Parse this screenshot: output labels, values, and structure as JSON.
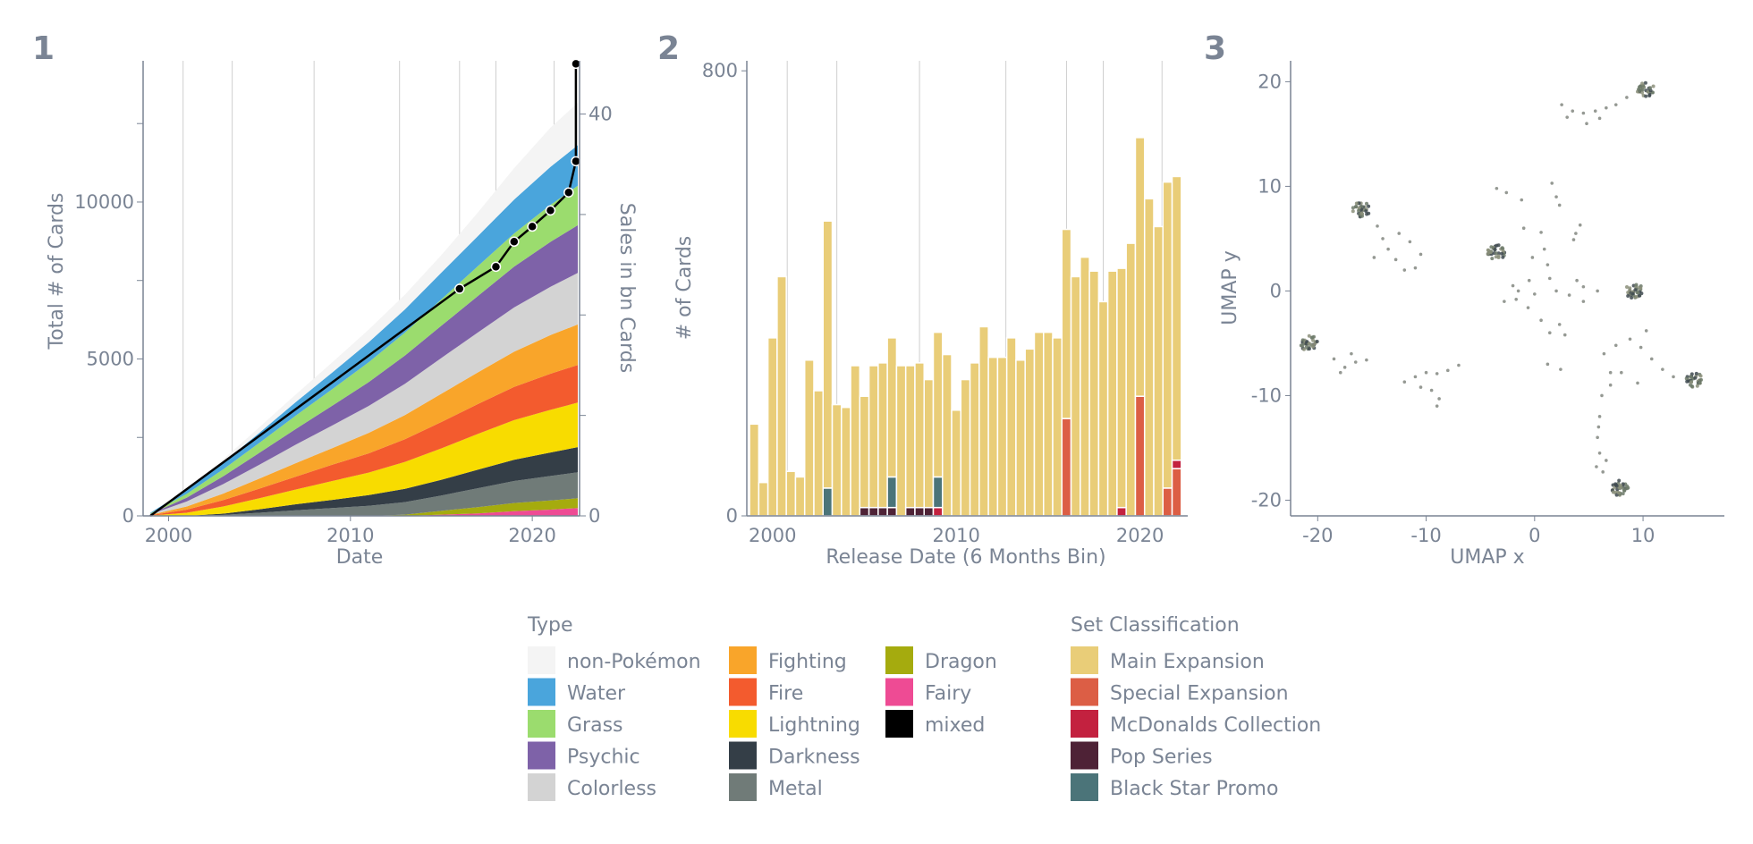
{
  "panels": [
    {
      "label": "1"
    },
    {
      "label": "2"
    },
    {
      "label": "3"
    }
  ],
  "colors": {
    "non-Pokémon": "#f4f4f4",
    "Water": "#4aa5dc",
    "Grass": "#9bdc6e",
    "Psychic": "#7e62a8",
    "Colorless": "#d3d3d3",
    "Fighting": "#f9a52a",
    "Fire": "#f35b2e",
    "Lightning": "#f8dc00",
    "Darkness": "#343e47",
    "Metal": "#707b78",
    "Dragon": "#a5ab0e",
    "Fairy": "#ee4b94",
    "mixed": "#000000",
    "Main Expansion": "#e9cd78",
    "Special Expansion": "#dc5e45",
    "McDonalds Collection": "#c3213f",
    "Pop Series": "#4e2236",
    "Black Star Promo": "#4b7479"
  },
  "chart_data": [
    {
      "type": "area",
      "panel": "1",
      "xlabel": "Date",
      "ylabel": "Total # of Cards",
      "y2label": "Sales in bn Cards",
      "xlim": [
        1998.6,
        2022.6
      ],
      "ylim": [
        0,
        14500
      ],
      "y2lim": [
        0,
        45.3
      ],
      "xticks": [
        2000,
        2010,
        2020
      ],
      "yticks": [
        0,
        5000,
        10000
      ],
      "y2ticks": [
        0,
        40
      ],
      "stacked": true,
      "series_order": [
        "mixed",
        "Fairy",
        "Dragon",
        "Metal",
        "Darkness",
        "Lightning",
        "Fire",
        "Fighting",
        "Colorless",
        "Psychic",
        "Grass",
        "Water",
        "non-Pokémon"
      ],
      "x": [
        1999.0,
        2001.0,
        2003.0,
        2005.0,
        2007.0,
        2009.0,
        2011.0,
        2013.0,
        2015.0,
        2017.0,
        2019.0,
        2021.0,
        2022.5
      ],
      "series": [
        {
          "name": "mixed",
          "values": [
            0,
            0,
            0,
            0,
            0,
            0,
            0,
            0,
            0,
            0,
            0,
            0,
            10
          ]
        },
        {
          "name": "Fairy",
          "values": [
            0,
            0,
            0,
            0,
            0,
            0,
            0,
            0,
            40,
            80,
            150,
            200,
            240
          ]
        },
        {
          "name": "Dragon",
          "values": [
            0,
            0,
            0,
            0,
            0,
            0,
            0,
            40,
            120,
            200,
            260,
            290,
            310
          ]
        },
        {
          "name": "Metal",
          "values": [
            0,
            0,
            30,
            100,
            180,
            250,
            320,
            400,
            490,
            600,
            700,
            780,
            830
          ]
        },
        {
          "name": "Darkness",
          "values": [
            0,
            0,
            40,
            110,
            190,
            260,
            340,
            420,
            500,
            590,
            680,
            750,
            800
          ]
        },
        {
          "name": "Lightning",
          "values": [
            10,
            100,
            230,
            350,
            470,
            600,
            720,
            860,
            1000,
            1140,
            1260,
            1360,
            1420
          ]
        },
        {
          "name": "Fire",
          "values": [
            10,
            100,
            200,
            310,
            410,
            520,
            610,
            720,
            840,
            950,
            1060,
            1150,
            1200
          ]
        },
        {
          "name": "Fighting",
          "values": [
            10,
            100,
            210,
            320,
            430,
            530,
            650,
            770,
            900,
            1010,
            1120,
            1230,
            1290
          ]
        },
        {
          "name": "Colorless",
          "values": [
            20,
            160,
            300,
            440,
            590,
            720,
            860,
            1000,
            1140,
            1270,
            1410,
            1540,
            1640
          ]
        },
        {
          "name": "Psychic",
          "values": [
            10,
            120,
            250,
            380,
            500,
            630,
            760,
            900,
            1030,
            1160,
            1300,
            1430,
            1520
          ]
        },
        {
          "name": "Grass",
          "values": [
            20,
            120,
            220,
            320,
            430,
            530,
            630,
            730,
            840,
            950,
            1060,
            1180,
            1260
          ]
        },
        {
          "name": "Water",
          "values": [
            20,
            120,
            220,
            320,
            430,
            530,
            640,
            740,
            850,
            960,
            1080,
            1210,
            1290
          ]
        },
        {
          "name": "non-Pokémon",
          "values": [
            0,
            40,
            100,
            180,
            240,
            320,
            400,
            470,
            560,
            750,
            1000,
            1250,
            1350
          ]
        }
      ],
      "sales_line": {
        "x": [
          1999.0,
          2016.0,
          2018.0,
          2019.0,
          2020.0,
          2021.0,
          2022.0,
          2023.0,
          2024.0
        ],
        "values": [
          0,
          22.6,
          24.8,
          27.3,
          28.8,
          30.4,
          32.2,
          35.3,
          45.7
        ]
      }
    },
    {
      "type": "bar",
      "panel": "2",
      "xlabel": "Release Date (6 Months Bin)",
      "ylabel": "# of Cards",
      "xlim": [
        1998.6,
        2022.6
      ],
      "ylim": [
        0,
        818
      ],
      "xticks": [
        2000,
        2010,
        2020
      ],
      "yticks": [
        0,
        800
      ],
      "stacked": true,
      "bin_width": 0.5,
      "series_order": [
        "Special Expansion",
        "McDonalds Collection",
        "Pop Series",
        "Black Star Promo",
        "Main Expansion"
      ],
      "x": [
        1999.0,
        1999.5,
        2000.0,
        2000.5,
        2001.0,
        2001.5,
        2002.0,
        2002.5,
        2003.0,
        2003.5,
        2004.0,
        2004.5,
        2005.0,
        2005.5,
        2006.0,
        2006.5,
        2007.0,
        2007.5,
        2008.0,
        2008.5,
        2009.0,
        2009.5,
        2010.0,
        2010.5,
        2011.0,
        2011.5,
        2012.0,
        2012.5,
        2013.0,
        2013.5,
        2014.0,
        2014.5,
        2015.0,
        2015.5,
        2016.0,
        2016.5,
        2017.0,
        2017.5,
        2018.0,
        2018.5,
        2019.0,
        2019.5,
        2020.0,
        2020.5,
        2021.0,
        2021.5,
        2022.0
      ],
      "series": [
        {
          "name": "Main Expansion",
          "values": [
            165,
            60,
            320,
            430,
            80,
            70,
            280,
            225,
            480,
            200,
            195,
            270,
            200,
            255,
            260,
            250,
            270,
            255,
            260,
            230,
            260,
            290,
            190,
            245,
            275,
            340,
            285,
            285,
            320,
            280,
            300,
            330,
            330,
            320,
            340,
            430,
            465,
            440,
            385,
            440,
            430,
            490,
            465,
            570,
            520,
            550,
            510
          ]
        },
        {
          "name": "Special Expansion",
          "values": [
            0,
            0,
            0,
            0,
            0,
            0,
            0,
            0,
            0,
            0,
            0,
            0,
            0,
            0,
            0,
            0,
            0,
            0,
            0,
            0,
            0,
            0,
            0,
            0,
            0,
            0,
            0,
            0,
            0,
            0,
            0,
            0,
            0,
            0,
            175,
            0,
            0,
            0,
            0,
            0,
            0,
            0,
            215,
            0,
            0,
            50,
            85
          ]
        },
        {
          "name": "McDonalds Collection",
          "values": [
            0,
            0,
            0,
            0,
            0,
            0,
            0,
            0,
            0,
            0,
            0,
            0,
            0,
            0,
            0,
            0,
            0,
            0,
            0,
            0,
            15,
            0,
            0,
            0,
            0,
            0,
            0,
            0,
            0,
            0,
            0,
            0,
            0,
            0,
            0,
            0,
            0,
            0,
            0,
            0,
            15,
            0,
            0,
            0,
            0,
            0,
            15
          ]
        },
        {
          "name": "Pop Series",
          "values": [
            0,
            0,
            0,
            0,
            0,
            0,
            0,
            0,
            0,
            0,
            0,
            0,
            15,
            15,
            15,
            15,
            0,
            15,
            15,
            15,
            0,
            0,
            0,
            0,
            0,
            0,
            0,
            0,
            0,
            0,
            0,
            0,
            0,
            0,
            0,
            0,
            0,
            0,
            0,
            0,
            0,
            0,
            0,
            0,
            0,
            0,
            0
          ]
        },
        {
          "name": "Black Star Promo",
          "values": [
            0,
            0,
            0,
            0,
            0,
            0,
            0,
            0,
            50,
            0,
            0,
            0,
            0,
            0,
            0,
            55,
            0,
            0,
            0,
            0,
            55,
            0,
            0,
            0,
            0,
            0,
            0,
            0,
            0,
            0,
            0,
            0,
            0,
            0,
            0,
            0,
            0,
            0,
            0,
            0,
            0,
            0,
            0,
            0,
            0,
            0,
            0
          ]
        }
      ]
    },
    {
      "type": "scatter",
      "panel": "3",
      "xlabel": "UMAP  x",
      "ylabel": "UMAP  y",
      "xlim": [
        -22.5,
        17.5
      ],
      "ylim": [
        -21.5,
        22
      ],
      "xticks": [
        -20,
        -10,
        0,
        10
      ],
      "yticks": [
        -20,
        -10,
        0,
        10,
        20
      ],
      "dense_clusters": [
        {
          "x": 10.2,
          "y": 19.3
        },
        {
          "x": -16.0,
          "y": 7.8
        },
        {
          "x": -3.5,
          "y": 3.7
        },
        {
          "x": 9.2,
          "y": 0.0
        },
        {
          "x": -20.8,
          "y": -5.0
        },
        {
          "x": 14.8,
          "y": -8.5
        },
        {
          "x": 7.8,
          "y": -18.8
        }
      ],
      "scattered_points": [
        [
          2.5,
          17.8
        ],
        [
          3.5,
          17.2
        ],
        [
          4.5,
          17.0
        ],
        [
          5.6,
          17.2
        ],
        [
          6.6,
          17.5
        ],
        [
          7.5,
          17.8
        ],
        [
          8.5,
          18.5
        ],
        [
          4.8,
          16.0
        ],
        [
          6.0,
          16.5
        ],
        [
          3.0,
          16.6
        ],
        [
          -14.5,
          6.2
        ],
        [
          -14.0,
          5.0
        ],
        [
          -13.5,
          4.0
        ],
        [
          -12.8,
          3.0
        ],
        [
          -12.0,
          2.0
        ],
        [
          -11.0,
          2.2
        ],
        [
          -10.5,
          3.5
        ],
        [
          -11.5,
          4.7
        ],
        [
          -12.5,
          5.5
        ],
        [
          -14.8,
          3.2
        ],
        [
          -3.5,
          9.8
        ],
        [
          -2.6,
          9.4
        ],
        [
          -1.2,
          8.7
        ],
        [
          1.6,
          10.3
        ],
        [
          2.0,
          9.0
        ],
        [
          2.3,
          8.2
        ],
        [
          3.8,
          5.5
        ],
        [
          4.2,
          6.3
        ],
        [
          3.6,
          4.9
        ],
        [
          -1.0,
          6.0
        ],
        [
          0.6,
          5.6
        ],
        [
          0.9,
          4.0
        ],
        [
          1.2,
          2.5
        ],
        [
          1.4,
          1.2
        ],
        [
          -0.2,
          3.2
        ],
        [
          -0.5,
          1.0
        ],
        [
          -1.5,
          0.0
        ],
        [
          -2.8,
          -1.0
        ],
        [
          -2.0,
          0.5
        ],
        [
          0.0,
          -0.3
        ],
        [
          2.0,
          0.0
        ],
        [
          3.2,
          -0.4
        ],
        [
          4.5,
          0.4
        ],
        [
          5.8,
          0.0
        ],
        [
          -0.6,
          -1.6
        ],
        [
          0.6,
          -2.8
        ],
        [
          1.4,
          -4.0
        ],
        [
          2.3,
          -3.2
        ],
        [
          2.8,
          -4.2
        ],
        [
          1.2,
          -7.0
        ],
        [
          -18.5,
          -6.5
        ],
        [
          -17.5,
          -7.3
        ],
        [
          -16.5,
          -6.8
        ],
        [
          -15.5,
          -6.6
        ],
        [
          -17.9,
          -7.8
        ],
        [
          -16.9,
          -6.0
        ],
        [
          -12.0,
          -8.7
        ],
        [
          -11.0,
          -8.2
        ],
        [
          -10.0,
          -7.8
        ],
        [
          -9.0,
          -7.9
        ],
        [
          -8.0,
          -7.6
        ],
        [
          -7.0,
          -7.1
        ],
        [
          -9.5,
          -9.5
        ],
        [
          -9.0,
          -11.0
        ],
        [
          -8.8,
          -10.3
        ],
        [
          -10.5,
          -9.2
        ],
        [
          6.4,
          -6.0
        ],
        [
          7.5,
          -5.2
        ],
        [
          8.8,
          -4.6
        ],
        [
          9.8,
          -5.4
        ],
        [
          10.8,
          -6.5
        ],
        [
          11.8,
          -7.5
        ],
        [
          12.8,
          -8.2
        ],
        [
          7.0,
          -7.8
        ],
        [
          6.2,
          -10.0
        ],
        [
          6.0,
          -12.0
        ],
        [
          5.8,
          -14.0
        ],
        [
          6.0,
          -15.5
        ],
        [
          5.7,
          -16.8
        ],
        [
          6.3,
          -17.3
        ],
        [
          8.0,
          -7.8
        ],
        [
          9.5,
          -8.8
        ],
        [
          10.3,
          -3.8
        ],
        [
          7.0,
          -9.0
        ],
        [
          5.9,
          -13.0
        ],
        [
          6.6,
          -16.2
        ],
        [
          2.4,
          -7.5
        ],
        [
          4.5,
          -1.0
        ],
        [
          3.9,
          1.0
        ],
        [
          -1.7,
          -0.8
        ]
      ]
    }
  ],
  "legend_type": {
    "title": "Type",
    "items": [
      "non-Pokémon",
      "Water",
      "Grass",
      "Psychic",
      "Colorless",
      "Fighting",
      "Fire",
      "Lightning",
      "Darkness",
      "Metal",
      "Dragon",
      "Fairy",
      "mixed"
    ]
  },
  "legend_set": {
    "title": "Set Classification",
    "items": [
      "Main Expansion",
      "Special Expansion",
      "McDonalds Collection",
      "Pop Series",
      "Black Star Promo"
    ]
  }
}
